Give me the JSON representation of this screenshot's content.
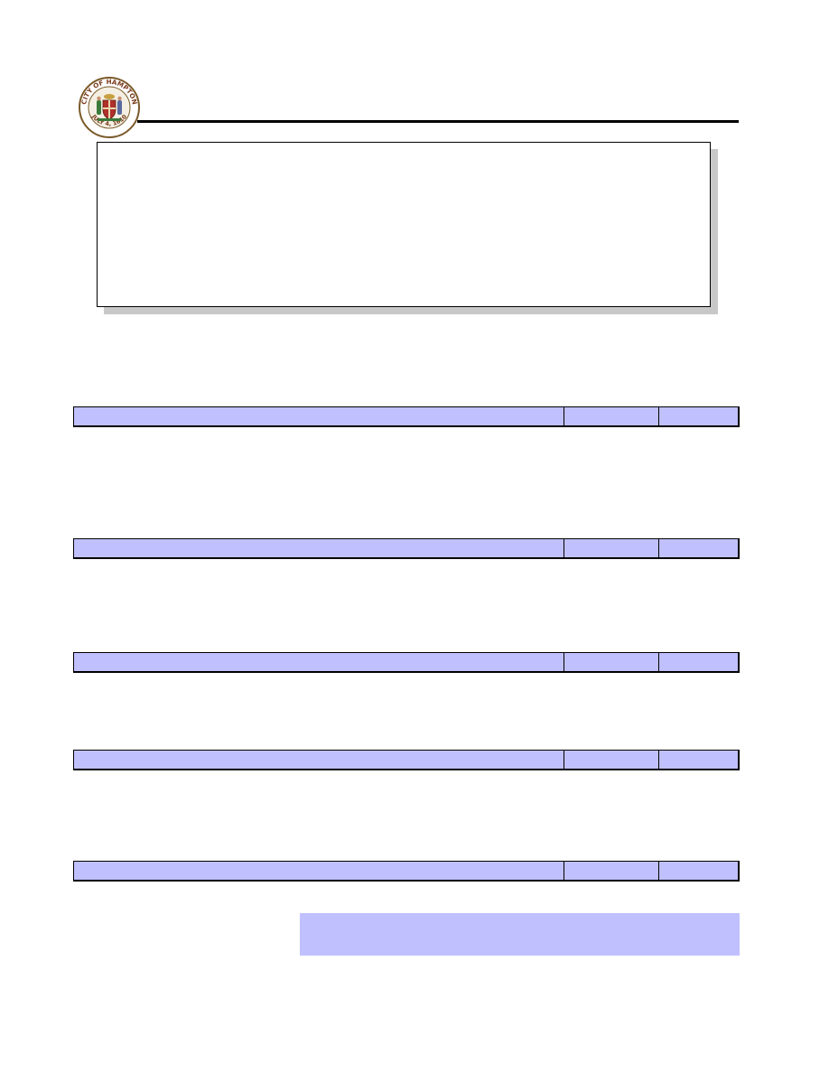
{
  "seal": {
    "ring_text": "CITY OF HAMPTON",
    "date_text": "JULY 4, 1610",
    "colors": {
      "ring": "#7a5a2a",
      "shield_red": "#b0302a",
      "green": "#3a7a3a",
      "gold": "#c8a040"
    }
  },
  "colors": {
    "bar_fill": "#c0c0ff",
    "rule": "#000000",
    "shadow": "#c8c8c8"
  },
  "info_box": {
    "text": ""
  },
  "sections": [
    {
      "title": "",
      "col2": "",
      "col3": ""
    },
    {
      "title": "",
      "col2": "",
      "col3": ""
    },
    {
      "title": "",
      "col2": "",
      "col3": ""
    },
    {
      "title": "",
      "col2": "",
      "col3": ""
    },
    {
      "title": "",
      "col2": "",
      "col3": ""
    }
  ],
  "total_box": {
    "text": ""
  }
}
